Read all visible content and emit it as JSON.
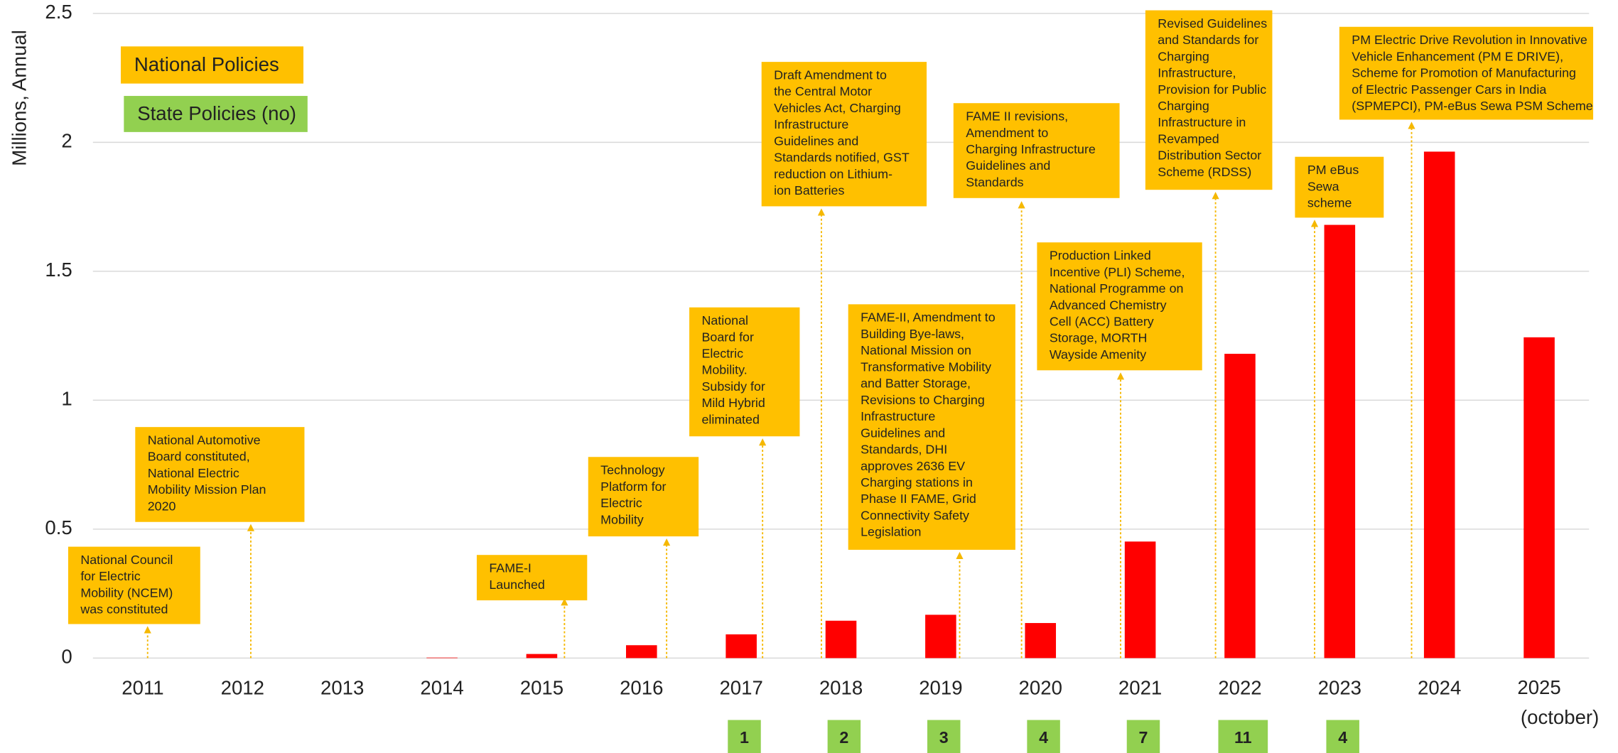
{
  "chart_data": {
    "type": "bar",
    "y_label": "Millions, Annual",
    "categories": [
      "2011",
      "2012",
      "2013",
      "2014",
      "2015",
      "2016",
      "2017",
      "2018",
      "2019",
      "2020",
      "2021",
      "2022",
      "2023",
      "2024",
      "2025 (october)"
    ],
    "values": [
      0,
      0,
      0,
      0.002,
      0.016,
      0.05,
      0.092,
      0.145,
      0.168,
      0.136,
      0.452,
      1.18,
      1.68,
      1.964,
      1.244
    ],
    "color": "#ff0000",
    "ylim": [
      0,
      2.5
    ],
    "yticks": [
      0,
      0.5,
      1,
      1.5,
      2,
      2.5
    ],
    "grid": true,
    "legend": [
      {
        "name": "National Policies",
        "color": "#ffc000"
      },
      {
        "name": "State Policies (no)",
        "color": "#92d050"
      }
    ],
    "state_policies": {
      "categories": [
        "2017",
        "2018",
        "2019",
        "2020",
        "2021",
        "2022",
        "2023"
      ],
      "values": [
        1,
        2,
        3,
        4,
        7,
        11,
        4
      ],
      "color": "#92d050"
    },
    "annotations": [
      {
        "lines": [
          "National Council",
          "for Electric",
          "Mobility (NCEM)",
          "was constituted"
        ]
      },
      {
        "lines": [
          "National Automotive",
          "Board constituted,",
          "National Electric",
          "Mobility Mission Plan",
          "2020"
        ]
      },
      {
        "lines": [
          "FAME-I",
          "Launched"
        ]
      },
      {
        "lines": [
          "Technology",
          "Platform for",
          "Electric",
          "Mobility"
        ]
      },
      {
        "lines": [
          "National",
          "Board for",
          "Electric",
          "Mobility.",
          "Subsidy for",
          "Mild Hybrid",
          "eliminated"
        ]
      },
      {
        "lines": [
          "Draft Amendment to",
          "the Central Motor",
          "Vehicles Act, Charging",
          "Infrastructure",
          "Guidelines and",
          "Standards notified, GST",
          "reduction on Lithium-",
          "ion Batteries"
        ]
      },
      {
        "lines": [
          "FAME-II, Amendment to",
          "Building Bye-laws,",
          "National Mission on",
          "Transformative Mobility",
          "and Batter Storage,",
          "Revisions to Charging",
          "Infrastructure",
          "Guidelines and",
          "Standards, DHI",
          "approves 2636 EV",
          "Charging stations in",
          "Phase II FAME, Grid",
          "Connectivity Safety",
          "Legislation"
        ]
      },
      {
        "lines": [
          "FAME II revisions,",
          "Amendment to",
          "Charging Infrastructure",
          "Guidelines and",
          "Standards"
        ]
      },
      {
        "lines": [
          "Production Linked",
          "Incentive (PLI) Scheme,",
          "National Programme on",
          "Advanced Chemistry",
          "Cell (ACC) Battery",
          "Storage, MORTH",
          "Wayside Amenity"
        ]
      },
      {
        "lines": [
          "Revised Guidelines",
          "and Standards for",
          "Charging",
          "Infrastructure,",
          "Provision for Public",
          "Charging",
          "Infrastructure in",
          "Revamped",
          "Distribution Sector",
          "Scheme (RDSS)"
        ]
      },
      {
        "lines": [
          "PM eBus",
          "Sewa",
          "scheme"
        ]
      },
      {
        "lines": [
          "PM Electric Drive Revolution in Innovative",
          "Vehicle Enhancement (PM E DRIVE),",
          "Scheme for Promotion of Manufacturing",
          "of Electric Passenger Cars in India",
          "(SPMEPCI), PM-eBus Sewa PSM Scheme"
        ]
      }
    ]
  }
}
